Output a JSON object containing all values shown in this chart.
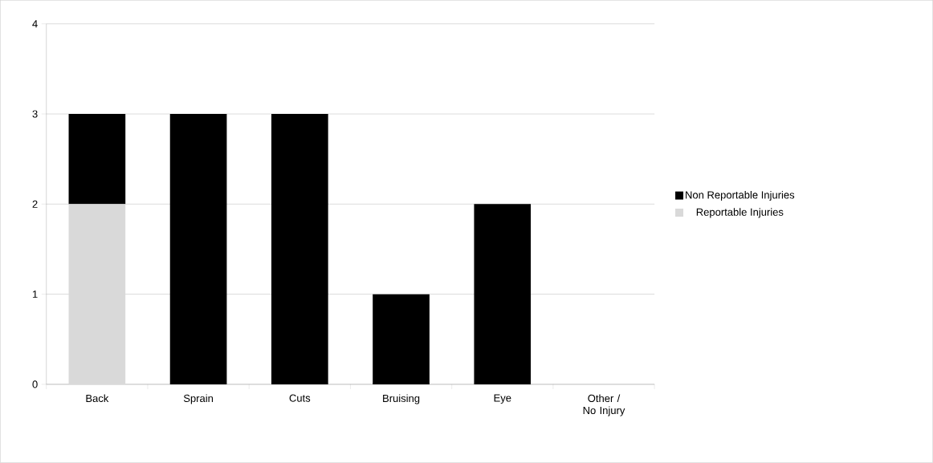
{
  "chart_data": {
    "type": "bar",
    "stacked": true,
    "categories": [
      "Back",
      "Sprain",
      "Cuts",
      "Bruising",
      "Eye",
      "Other / No Injury"
    ],
    "series": [
      {
        "name": "Reportable Injuries",
        "color": "#d9d9d9",
        "values": [
          2,
          0,
          0,
          0,
          0,
          0
        ]
      },
      {
        "name": "Non Reportable Injuries",
        "color": "#000000",
        "values": [
          1,
          3,
          3,
          1,
          2,
          0
        ]
      }
    ],
    "ylim": [
      0,
      4
    ],
    "yticks": [
      0,
      1,
      2,
      3,
      4
    ],
    "grid": "y",
    "legend": "right"
  }
}
